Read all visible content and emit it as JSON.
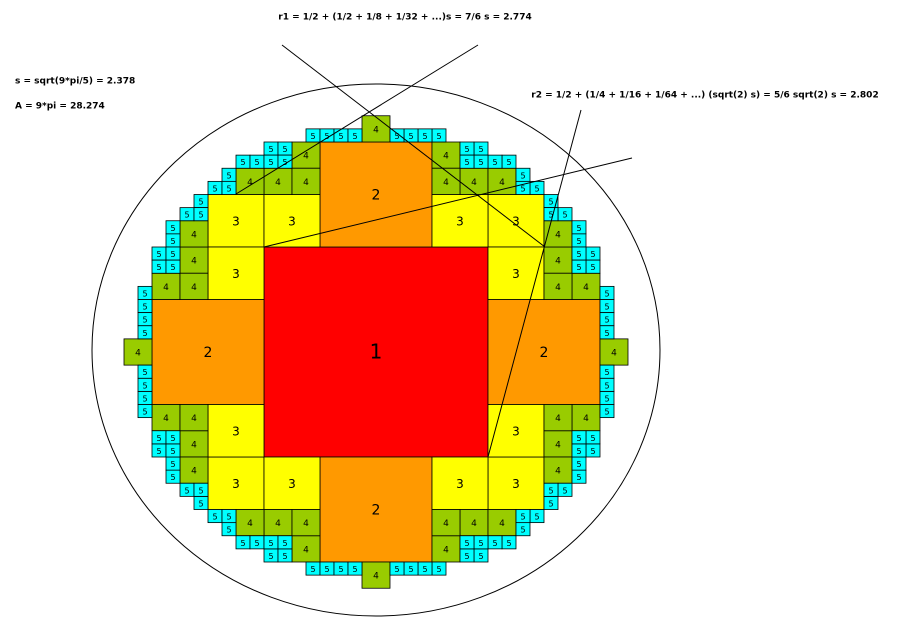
{
  "annotations": {
    "r1": "r1 = 1/2 + (1/2 + 1/8 + 1/32 + ...)s = 7/6 s = 2.774",
    "s": "s = sqrt(9*pi/5) = 2.378",
    "A": "A = 9*pi = 28.274",
    "r2": "r2 = 1/2 + (1/4 + 1/16 + 1/64 + ...) (sqrt(2) s) = 5/6 sqrt(2) s = 2.802"
  },
  "levels": [
    {
      "label": "1"
    },
    {
      "label": "2"
    },
    {
      "label": "3"
    },
    {
      "label": "4"
    },
    {
      "label": "5"
    }
  ]
}
